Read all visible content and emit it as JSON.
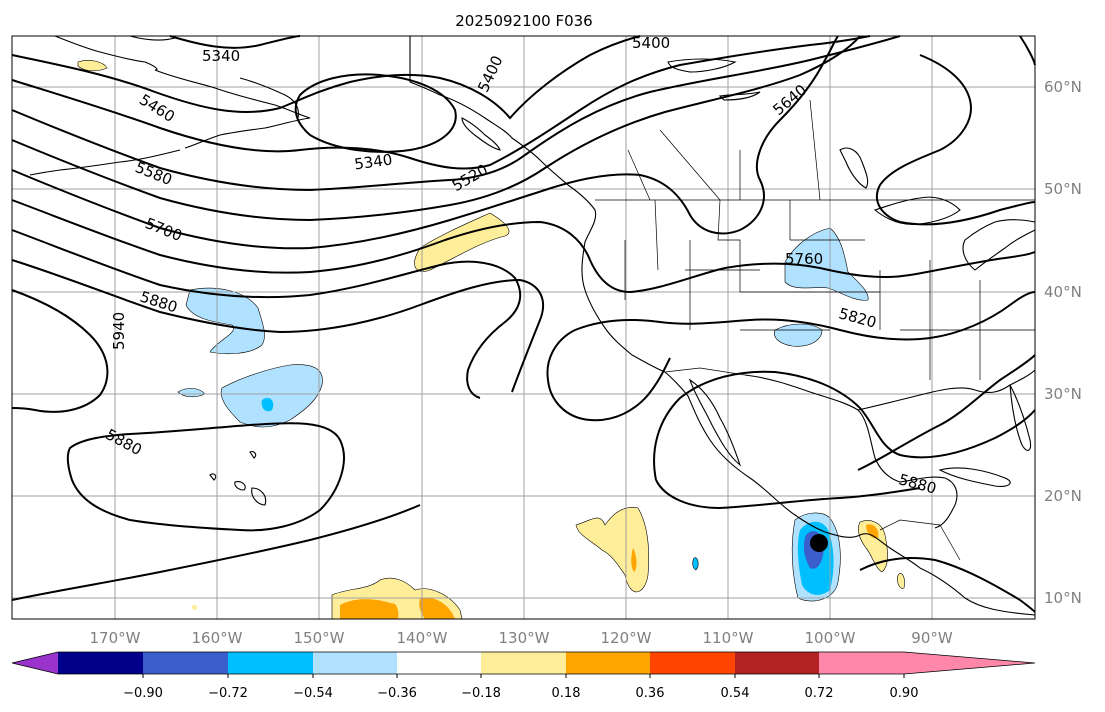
{
  "title": "2025092100 F036",
  "map": {
    "lon_labels": [
      "170°W",
      "160°W",
      "150°W",
      "140°W",
      "130°W",
      "120°W",
      "110°W",
      "100°W",
      "90°W"
    ],
    "lat_labels": [
      "60°N",
      "50°N",
      "40°N",
      "30°N",
      "20°N",
      "10°N"
    ],
    "contour_labels": [
      "5340",
      "5400",
      "5400",
      "5460",
      "5340",
      "5520",
      "5640",
      "5580",
      "5700",
      "5760",
      "5880",
      "5820",
      "5940",
      "5880",
      "5880"
    ],
    "marker": "storm-center"
  },
  "colorbar": {
    "ticks": [
      "−0.90",
      "−0.72",
      "−0.54",
      "−0.36",
      "−0.18",
      "0.18",
      "0.36",
      "0.54",
      "0.72",
      "0.90"
    ],
    "colors": [
      "#9933cc",
      "#00008b",
      "#3a5fcd",
      "#00bfff",
      "#b0e2ff",
      "#ffffff",
      "#ffee99",
      "#ffa500",
      "#ff4500",
      "#b22222",
      "#ff88aa"
    ]
  }
}
